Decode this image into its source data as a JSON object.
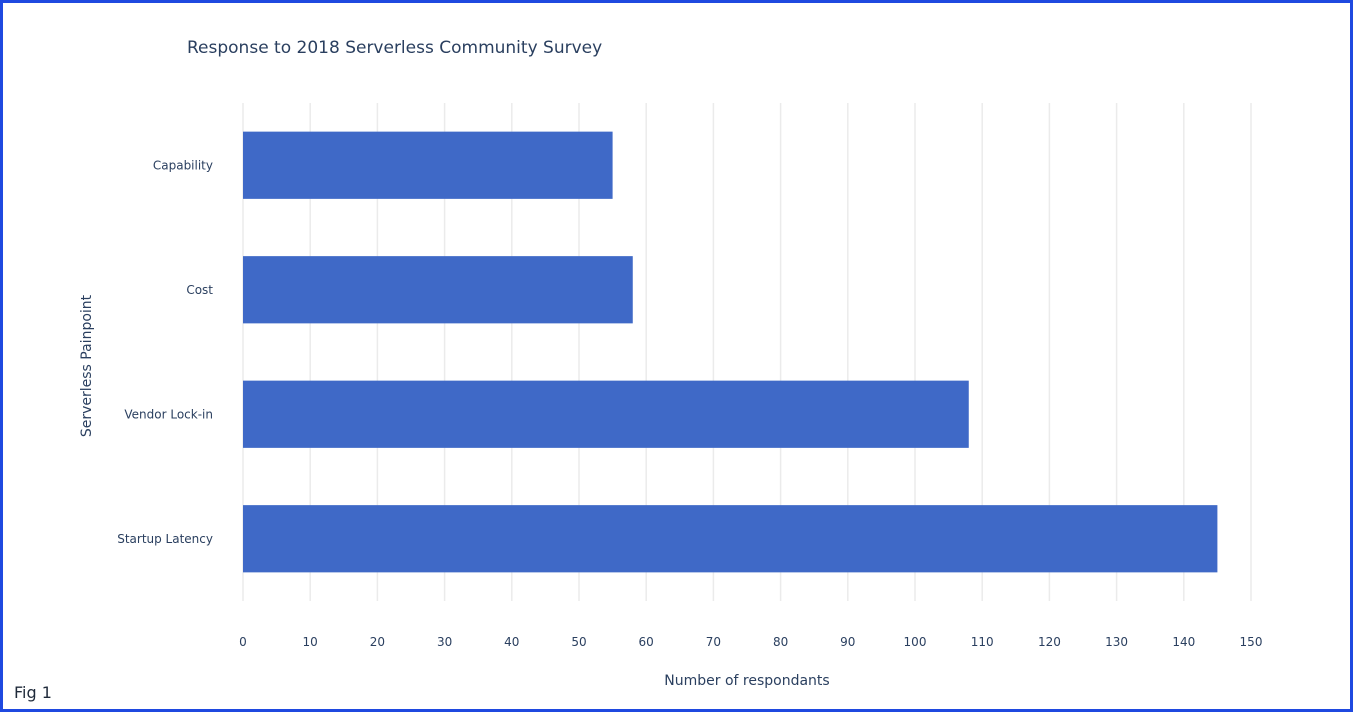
{
  "figure_caption": "Fig 1",
  "chart_data": {
    "type": "bar",
    "orientation": "horizontal",
    "title": "Response to 2018 Serverless Community Survey",
    "xlabel": "Number of respondants",
    "ylabel": "Serverless Painpoint",
    "categories": [
      "Capability",
      "Cost",
      "Vendor Lock-in",
      "Startup Latency"
    ],
    "values": [
      55,
      58,
      108,
      145
    ],
    "xlim": [
      0,
      150
    ],
    "xticks": [
      0,
      10,
      20,
      30,
      40,
      50,
      60,
      70,
      80,
      90,
      100,
      110,
      120,
      130,
      140,
      150
    ],
    "grid": true,
    "legend": "none",
    "bar_color": "#3f69c7"
  }
}
